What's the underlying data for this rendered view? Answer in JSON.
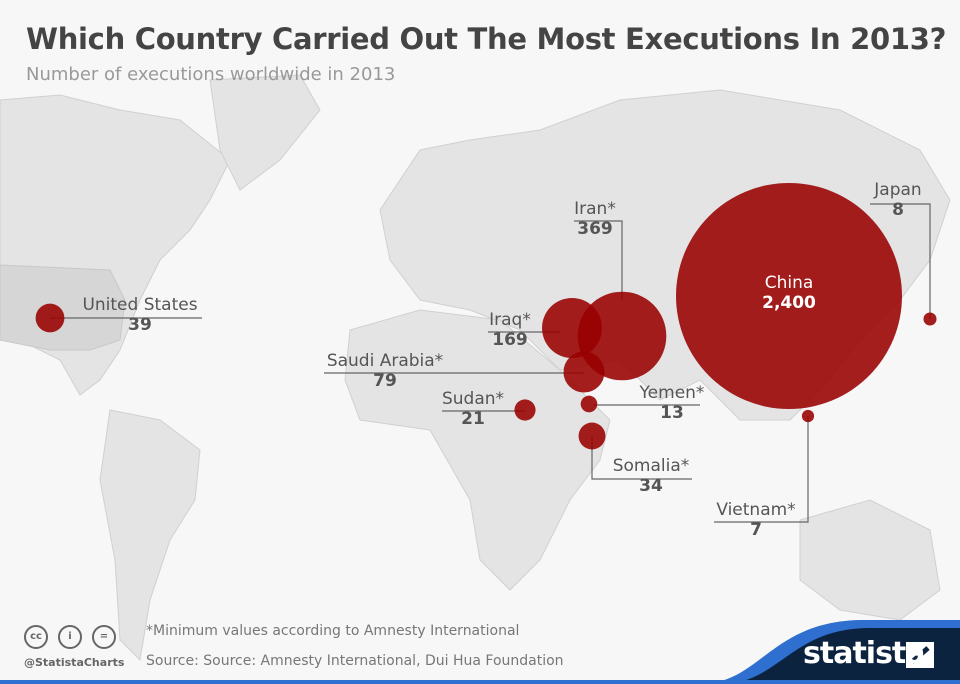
{
  "title": "Which Country Carried Out The Most Executions In 2013?",
  "subtitle": "Number of executions worldwide in 2013",
  "chart_data": {
    "type": "bubble-map",
    "unit": "executions",
    "points": [
      {
        "country": "United States",
        "label": "United States",
        "value": 39,
        "value_label": "39"
      },
      {
        "country": "China",
        "label": "China",
        "value": 2400,
        "value_label": "2,400"
      },
      {
        "country": "Iran",
        "label": "Iran*",
        "value": 369,
        "value_label": "369"
      },
      {
        "country": "Iraq",
        "label": "Iraq*",
        "value": 169,
        "value_label": "169"
      },
      {
        "country": "Saudi Arabia",
        "label": "Saudi Arabia*",
        "value": 79,
        "value_label": "79"
      },
      {
        "country": "Yemen",
        "label": "Yemen*",
        "value": 13,
        "value_label": "13"
      },
      {
        "country": "Sudan",
        "label": "Sudan*",
        "value": 21,
        "value_label": "21"
      },
      {
        "country": "Somalia",
        "label": "Somalia*",
        "value": 34,
        "value_label": "34"
      },
      {
        "country": "Japan",
        "label": "Japan",
        "value": 8,
        "value_label": "8"
      },
      {
        "country": "Vietnam",
        "label": "Vietnam*",
        "value": 7,
        "value_label": "7"
      }
    ],
    "bubble_color": "#990000"
  },
  "footer": {
    "note": "*Minimum values according to Amnesty International",
    "source": "Source: Source: Amnesty International, Dui Hua Foundation",
    "handle": "@StatistaCharts",
    "brand": "statista",
    "license_icons": [
      "cc",
      "i",
      "="
    ]
  }
}
